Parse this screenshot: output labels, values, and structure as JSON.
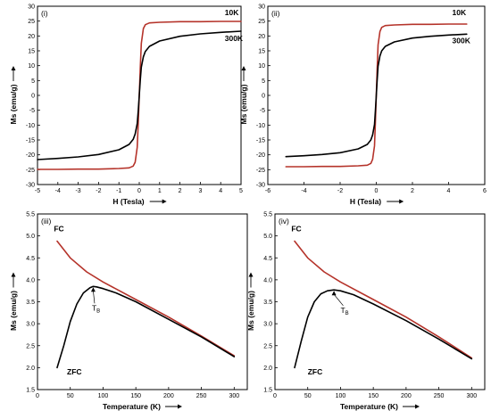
{
  "colors": {
    "red": "#b5332a",
    "black": "#000000"
  },
  "chart_data": [
    {
      "type": "line",
      "panel_label": "(i)",
      "xlabel": "H (Tesla)",
      "ylabel": "Ms (emu/g)",
      "xlim": [
        -5,
        5
      ],
      "ylim": [
        -30,
        30
      ],
      "xticks": [
        -5,
        -4,
        -3,
        -2,
        -1,
        0,
        1,
        2,
        3,
        4,
        5
      ],
      "yticks": [
        -30,
        -25,
        -20,
        -15,
        -10,
        -5,
        0,
        5,
        10,
        15,
        20,
        25,
        30
      ],
      "series": [
        {
          "name": "10K",
          "color": "red",
          "x": [
            -5,
            -4,
            -3,
            -2,
            -1,
            -0.5,
            -0.3,
            -0.2,
            -0.1,
            -0.05,
            0,
            0.05,
            0.1,
            0.2,
            0.3,
            0.5,
            1,
            2,
            3,
            4,
            5
          ],
          "y": [
            -24.9,
            -24.9,
            -24.8,
            -24.8,
            -24.6,
            -24.4,
            -23.8,
            -22.5,
            -17.5,
            -9,
            0,
            9,
            17.5,
            22.5,
            23.8,
            24.4,
            24.6,
            24.8,
            24.8,
            24.9,
            24.9
          ]
        },
        {
          "name": "300K",
          "color": "black",
          "x": [
            -5,
            -4,
            -3,
            -2,
            -1,
            -0.5,
            -0.3,
            -0.2,
            -0.1,
            -0.05,
            0,
            0.05,
            0.1,
            0.2,
            0.3,
            0.5,
            1,
            2,
            3,
            4,
            5
          ],
          "y": [
            -21.6,
            -21.2,
            -20.7,
            -19.9,
            -18.3,
            -16.5,
            -14.8,
            -13,
            -9.5,
            -5,
            0,
            5,
            9.5,
            13,
            14.8,
            16.5,
            18.3,
            19.9,
            20.7,
            21.2,
            21.6
          ]
        }
      ],
      "annotations": [
        {
          "text": "10K",
          "x": 4.2,
          "y": 27
        },
        {
          "text": "300K",
          "x": 4.2,
          "y": 18.3
        }
      ]
    },
    {
      "type": "line",
      "panel_label": "(ii)",
      "xlabel": "H (Tesla)",
      "ylabel": "Ms (emu/g)",
      "xlim": [
        -6,
        6
      ],
      "ylim": [
        -30,
        30
      ],
      "xticks": [
        -6,
        -4,
        -2,
        0,
        2,
        4,
        6
      ],
      "yticks": [
        -30,
        -25,
        -20,
        -15,
        -10,
        -5,
        0,
        5,
        10,
        15,
        20,
        25,
        30
      ],
      "series": [
        {
          "name": "10K",
          "color": "red",
          "x": [
            -5,
            -4,
            -3,
            -2,
            -1,
            -0.5,
            -0.3,
            -0.2,
            -0.1,
            -0.05,
            0,
            0.05,
            0.1,
            0.2,
            0.3,
            0.5,
            1,
            2,
            3,
            4,
            5
          ],
          "y": [
            -24,
            -24,
            -23.9,
            -23.9,
            -23.7,
            -23.5,
            -22.9,
            -21.5,
            -17,
            -9,
            0,
            9,
            17,
            21.5,
            22.9,
            23.5,
            23.7,
            23.9,
            23.9,
            24,
            24
          ]
        },
        {
          "name": "300K",
          "color": "black",
          "x": [
            -5,
            -4,
            -3,
            -2,
            -1,
            -0.5,
            -0.3,
            -0.2,
            -0.1,
            -0.05,
            0,
            0.05,
            0.1,
            0.2,
            0.3,
            0.5,
            1,
            2,
            3,
            4,
            5
          ],
          "y": [
            -20.6,
            -20.3,
            -19.9,
            -19.3,
            -18,
            -16.5,
            -15,
            -13.3,
            -9.8,
            -5.2,
            0,
            5.2,
            9.8,
            13.3,
            15,
            16.5,
            18,
            19.3,
            19.9,
            20.3,
            20.6
          ]
        }
      ],
      "annotations": [
        {
          "text": "10K",
          "x": 4.2,
          "y": 27
        },
        {
          "text": "300K",
          "x": 4.2,
          "y": 17.5
        }
      ]
    },
    {
      "type": "line",
      "panel_label": "(iii)",
      "xlabel": "Temperature (K)",
      "ylabel": "Ms (emu/g)",
      "xlim": [
        0,
        320
      ],
      "ylim": [
        1.5,
        5.5
      ],
      "xticks": [
        0,
        50,
        100,
        150,
        200,
        250,
        300
      ],
      "yticks": [
        1.5,
        2.0,
        2.5,
        3.0,
        3.5,
        4.0,
        4.5,
        5.0,
        5.5
      ],
      "series": [
        {
          "name": "FC",
          "color": "red",
          "x": [
            30,
            50,
            75,
            100,
            150,
            200,
            250,
            300
          ],
          "y": [
            4.88,
            4.5,
            4.18,
            3.95,
            3.55,
            3.15,
            2.72,
            2.27
          ]
        },
        {
          "name": "ZFC",
          "color": "black",
          "x": [
            30,
            40,
            50,
            60,
            70,
            80,
            85,
            90,
            100,
            120,
            150,
            200,
            250,
            300
          ],
          "y": [
            2.0,
            2.5,
            3.05,
            3.45,
            3.7,
            3.82,
            3.85,
            3.84,
            3.8,
            3.7,
            3.5,
            3.1,
            2.7,
            2.25
          ]
        }
      ],
      "annotations": [
        {
          "text": "FC",
          "x": 25,
          "y": 5.1
        },
        {
          "text": "ZFC",
          "x": 45,
          "y": 1.85
        },
        {
          "text": "T",
          "sub": "B",
          "x": 83,
          "y": 3.3
        }
      ]
    },
    {
      "type": "line",
      "panel_label": "(iv)",
      "xlabel": "Temperature (K)",
      "ylabel": "Ms (emu/g)",
      "xlim": [
        0,
        320
      ],
      "ylim": [
        1.5,
        5.5
      ],
      "xticks": [
        0,
        50,
        100,
        150,
        200,
        250,
        300
      ],
      "yticks": [
        1.5,
        2.0,
        2.5,
        3.0,
        3.5,
        4.0,
        4.5,
        5.0,
        5.5
      ],
      "series": [
        {
          "name": "FC",
          "color": "red",
          "x": [
            30,
            50,
            75,
            100,
            150,
            200,
            250,
            300
          ],
          "y": [
            4.88,
            4.5,
            4.18,
            3.95,
            3.55,
            3.15,
            2.7,
            2.22
          ]
        },
        {
          "name": "ZFC",
          "color": "black",
          "x": [
            30,
            40,
            50,
            60,
            70,
            80,
            90,
            100,
            120,
            150,
            200,
            250,
            300
          ],
          "y": [
            2.0,
            2.6,
            3.15,
            3.5,
            3.68,
            3.75,
            3.77,
            3.75,
            3.66,
            3.45,
            3.07,
            2.65,
            2.2
          ]
        }
      ],
      "annotations": [
        {
          "text": "FC",
          "x": 25,
          "y": 5.1
        },
        {
          "text": "ZFC",
          "x": 50,
          "y": 1.85
        },
        {
          "text": "T",
          "sub": "B",
          "x": 100,
          "y": 3.25
        }
      ]
    }
  ]
}
